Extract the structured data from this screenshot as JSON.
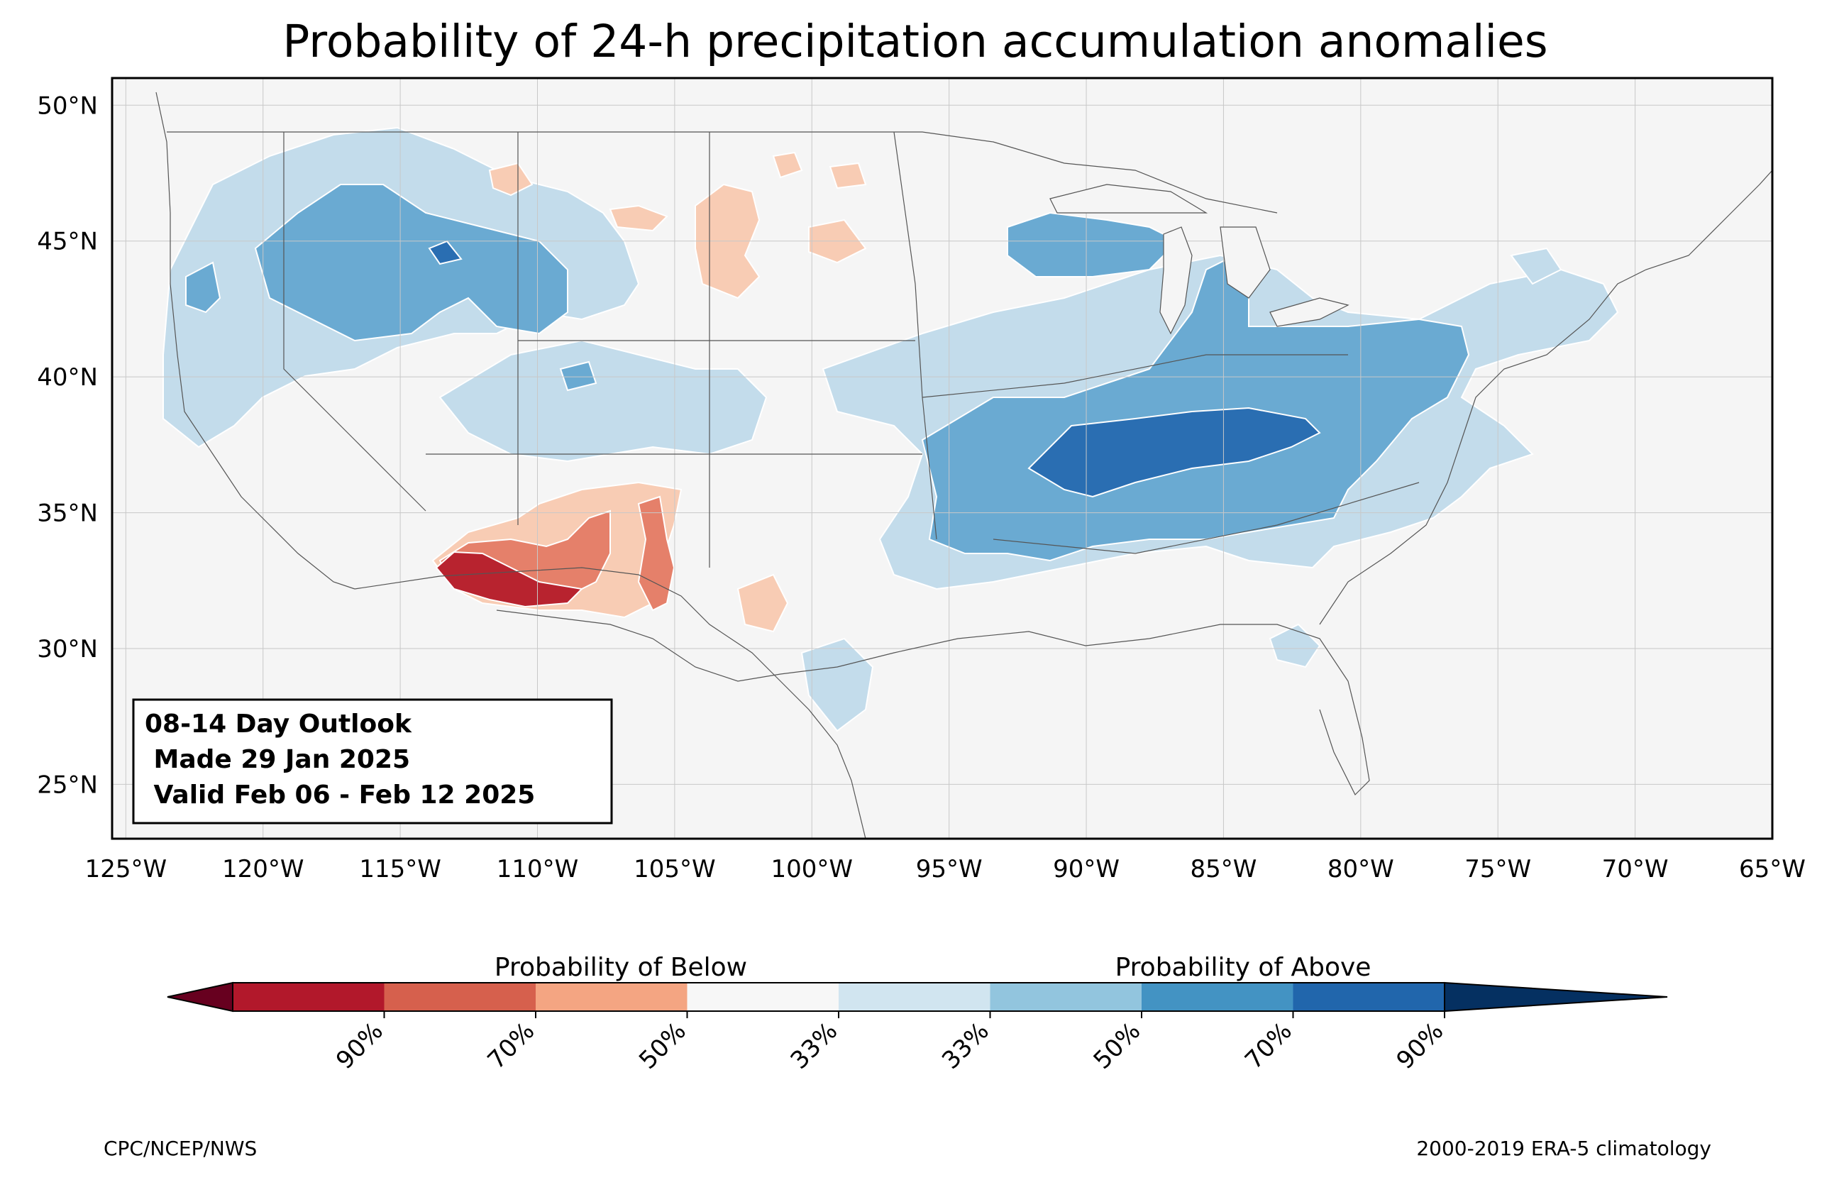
{
  "title": "Probability of 24-h precipitation accumulation anomalies",
  "outlook_box": {
    "line1": "08-14 Day Outlook",
    "line2": " Made 29 Jan 2025",
    "line3": " Valid Feb 06 - Feb 12 2025"
  },
  "axes": {
    "lon_ticks": [
      "125°W",
      "120°W",
      "115°W",
      "110°W",
      "105°W",
      "100°W",
      "95°W",
      "90°W",
      "85°W",
      "80°W",
      "75°W",
      "70°W",
      "65°W"
    ],
    "lat_ticks": [
      "50°N",
      "45°N",
      "40°N",
      "35°N",
      "30°N",
      "25°N"
    ],
    "lon_range": [
      -125.5,
      -65
    ],
    "lat_range": [
      23,
      51
    ]
  },
  "colorbar": {
    "below_label": "Probability of Below",
    "above_label": "Probability of Above",
    "tick_labels": [
      "90%",
      "70%",
      "50%",
      "33%",
      "33%",
      "50%",
      "70%",
      "90%"
    ],
    "colors": [
      "#67001f",
      "#b2182b",
      "#d6604d",
      "#f4a582",
      "#f7f7f7",
      "#d1e5f0",
      "#92c5de",
      "#4393c3",
      "#2166ac",
      "#053061"
    ]
  },
  "credits": {
    "left": "CPC/NCEP/NWS",
    "right": "2000-2019 ERA-5 climatology"
  },
  "palette": {
    "background": "#f5f5f5",
    "above_33": "#c3dceb",
    "above_50": "#6aaad2",
    "above_70": "#2a6eb2",
    "below_33": "#f8ccb4",
    "below_50": "#e5806a",
    "below_70": "#b8232f"
  }
}
